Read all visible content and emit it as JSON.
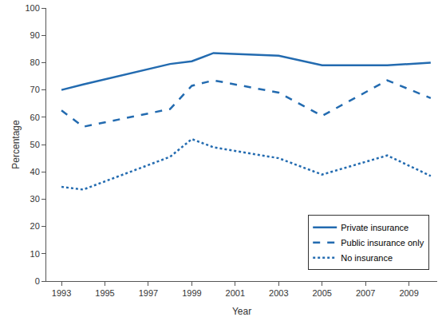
{
  "chart_data": {
    "type": "line",
    "x_label": "Year",
    "y_label": "Percentage",
    "x": [
      1993,
      1994,
      1998,
      1999,
      2000,
      2003,
      2005,
      2008,
      2010
    ],
    "series": [
      {
        "name": "Private insurance",
        "color": "#236bb0",
        "line_style": "solid",
        "values": [
          70,
          72,
          79.5,
          80.5,
          83.5,
          82.5,
          79,
          79,
          80
        ]
      },
      {
        "name": "Public insurance only",
        "color": "#236bb0",
        "line_style": "dash",
        "values": [
          62.5,
          56.5,
          63,
          71.5,
          73.5,
          69,
          60.5,
          73.5,
          67
        ]
      },
      {
        "name": "No insurance",
        "color": "#236bb0",
        "line_style": "dot",
        "values": [
          34.5,
          33.5,
          45.5,
          52,
          49,
          45,
          39,
          46,
          38.5
        ]
      }
    ],
    "xlim": [
      1992.3,
      2010.3
    ],
    "xticks": [
      1993,
      1995,
      1997,
      1999,
      2001,
      2003,
      2005,
      2007,
      2009
    ],
    "ylim": [
      0,
      100
    ],
    "yticks": [
      0,
      10,
      20,
      30,
      40,
      50,
      60,
      70,
      80,
      90,
      100
    ],
    "grid": false,
    "legend": "bottom right"
  }
}
